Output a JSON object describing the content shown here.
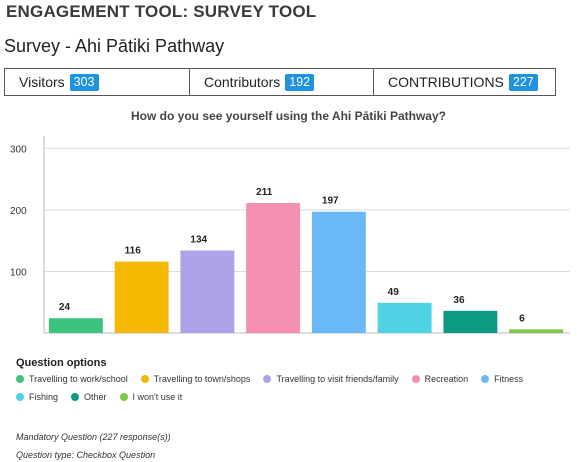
{
  "header": {
    "tool_title": "ENGAGEMENT TOOL: SURVEY TOOL",
    "survey_title": "Survey - Ahi Pātiki Pathway"
  },
  "stats": [
    {
      "label": "Visitors",
      "value": "303"
    },
    {
      "label": "Contributors",
      "value": "192"
    },
    {
      "label": "CONTRIBUTIONS",
      "value": "227"
    }
  ],
  "question": "How do you see yourself using the Ahi Pātiki Pathway?",
  "chart_data": {
    "type": "bar",
    "title": "How do you see yourself using the Ahi Pātiki Pathway?",
    "categories": [
      "Travelling to work/school",
      "Travelling to town/shops",
      "Travelling to visit friends/family",
      "Recreation",
      "Fitness",
      "Fishing",
      "Other",
      "I won't use it"
    ],
    "values": [
      24,
      116,
      134,
      211,
      197,
      49,
      36,
      6
    ],
    "colors": [
      "#3cc47c",
      "#f5b800",
      "#aea2e8",
      "#f58fb1",
      "#6bb8f6",
      "#4fd3e4",
      "#0d9a83",
      "#7dc84a"
    ],
    "ylim": [
      0,
      320
    ],
    "yticks": [
      100,
      200,
      300
    ],
    "grid": true,
    "legend_position": "bottom-left"
  },
  "legend": {
    "title": "Question options"
  },
  "meta": {
    "mandatory": "Mandatory Question (227 response(s))",
    "type": "Question type: Checkbox Question"
  }
}
